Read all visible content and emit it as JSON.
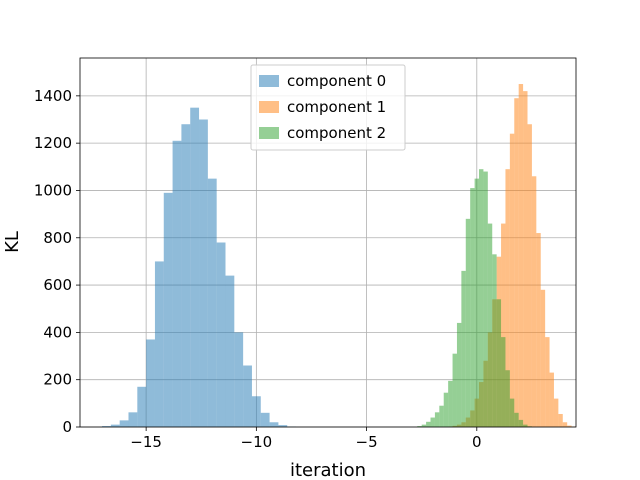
{
  "chart_data": {
    "type": "bar",
    "subtype": "overlapping-histogram",
    "xlabel": "iteration",
    "ylabel": "KL",
    "xlim": [
      -18,
      4.5
    ],
    "ylim": [
      0,
      1560
    ],
    "xticks": [
      -15,
      -10,
      -5,
      0
    ],
    "xtick_labels": [
      "−15",
      "−10",
      "−5",
      "0"
    ],
    "yticks": [
      0,
      200,
      400,
      600,
      800,
      1000,
      1200,
      1400
    ],
    "grid": true,
    "legend_position": "top-center",
    "series": [
      {
        "name": "component 0",
        "color": "#1f77b4",
        "alpha": 0.5,
        "bin_start": -17.0,
        "bin_width": 0.4,
        "values": [
          4,
          10,
          28,
          62,
          170,
          370,
          700,
          990,
          1210,
          1280,
          1350,
          1300,
          1050,
          780,
          640,
          400,
          260,
          130,
          60,
          20,
          8,
          2
        ]
      },
      {
        "name": "component 1",
        "color": "#ff7f0e",
        "alpha": 0.5,
        "bin_start": -1.3,
        "bin_width": 0.2,
        "values": [
          2,
          5,
          10,
          20,
          40,
          70,
          120,
          190,
          280,
          400,
          540,
          720,
          860,
          1090,
          1240,
          1390,
          1450,
          1420,
          1280,
          1060,
          820,
          580,
          380,
          230,
          120,
          55,
          20,
          6,
          2
        ]
      },
      {
        "name": "component 2",
        "color": "#2ca02c",
        "alpha": 0.5,
        "bin_start": -2.7,
        "bin_width": 0.2,
        "values": [
          4,
          10,
          22,
          40,
          62,
          90,
          145,
          195,
          310,
          440,
          660,
          880,
          1010,
          1050,
          1090,
          1080,
          860,
          730,
          540,
          380,
          240,
          120,
          60,
          30,
          10,
          3
        ]
      }
    ]
  }
}
